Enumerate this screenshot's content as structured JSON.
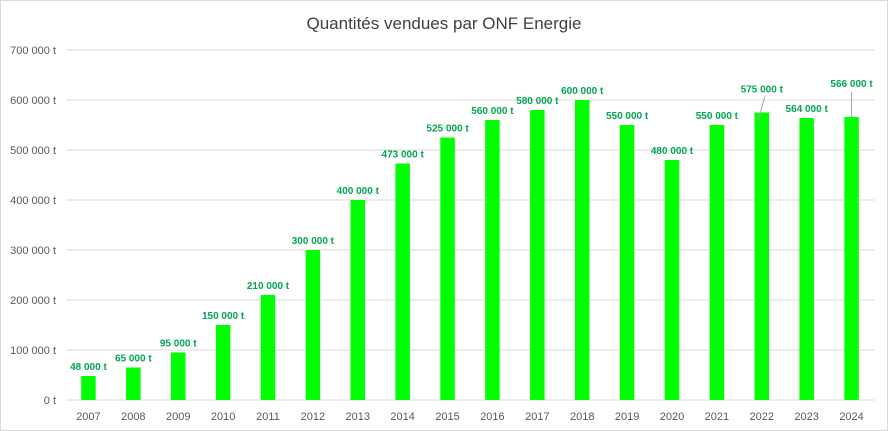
{
  "chart_data": {
    "type": "bar",
    "title": "Quantités vendues par ONF Energie",
    "xlabel": "",
    "ylabel": "",
    "ylim": [
      0,
      700000
    ],
    "yticks": [
      0,
      100000,
      200000,
      300000,
      400000,
      500000,
      600000,
      700000
    ],
    "ytick_labels": [
      "0 t",
      "100 000 t",
      "200 000 t",
      "300 000 t",
      "400 000 t",
      "500 000 t",
      "600 000 t",
      "700 000 t"
    ],
    "categories": [
      "2007",
      "2008",
      "2009",
      "2010",
      "2011",
      "2012",
      "2013",
      "2014",
      "2015",
      "2016",
      "2017",
      "2018",
      "2019",
      "2020",
      "2021",
      "2022",
      "2023",
      "2024"
    ],
    "values": [
      48000,
      65000,
      95000,
      150000,
      210000,
      300000,
      400000,
      473000,
      525000,
      560000,
      580000,
      600000,
      550000,
      480000,
      550000,
      575000,
      564000,
      566000
    ],
    "data_labels": [
      "48 000 t",
      "65 000 t",
      "95 000 t",
      "150 000 t",
      "210 000 t",
      "300 000 t",
      "400 000 t",
      "473 000 t",
      "525 000 t",
      "560 000 t",
      "580 000 t",
      "600 000 t",
      "550 000 t",
      "480 000 t",
      "550 000 t",
      "575 000 t",
      "564 000 t",
      "566 000 t"
    ],
    "grid": true,
    "legend": "none",
    "bar_color": "#00ff00",
    "label_color": "#00a651"
  }
}
